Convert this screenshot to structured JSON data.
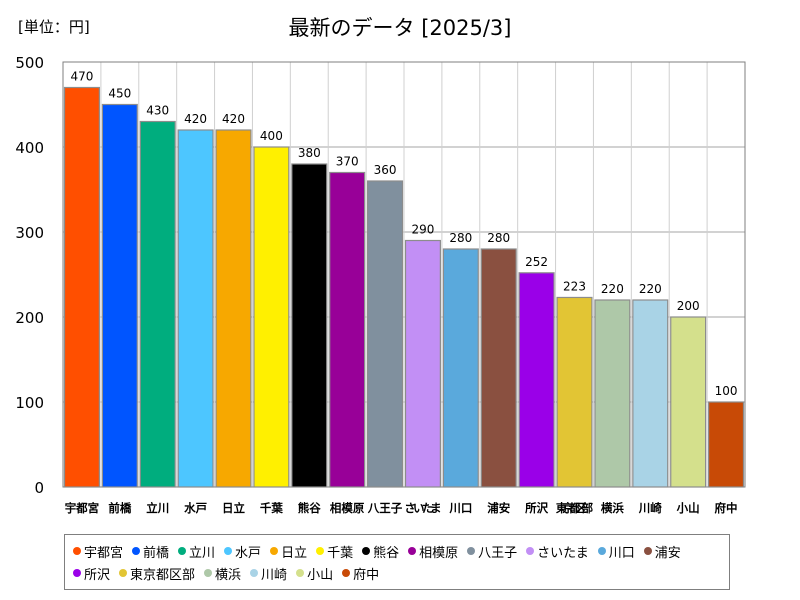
{
  "unit_label": "[単位：円]",
  "chart_data": {
    "type": "bar",
    "title": "最新のデータ [2025/3]",
    "xlabel": "",
    "ylabel": "",
    "ylim": [
      0,
      500
    ],
    "yticks": [
      0,
      100,
      200,
      300,
      400,
      500
    ],
    "grid": true,
    "legend_position": "bottom",
    "categories": [
      "宇都宮",
      "前橋",
      "立川",
      "水戸",
      "日立",
      "千葉",
      "熊谷",
      "相模原",
      "八王子",
      "さいたま",
      "川口",
      "浦安",
      "所沢",
      "東京都区部",
      "横浜",
      "川崎",
      "小山",
      "府中"
    ],
    "values": [
      470,
      450,
      430,
      420,
      420,
      400,
      380,
      370,
      360,
      290,
      280,
      280,
      252,
      223,
      220,
      220,
      200,
      100
    ],
    "colors": [
      "#ff4f00",
      "#0055ff",
      "#00ad7e",
      "#4dc6ff",
      "#f7a800",
      "#fff000",
      "#000000",
      "#980098",
      "#80909e",
      "#c28ff5",
      "#5aa9dc",
      "#8a5040",
      "#9a00e8",
      "#e2c534",
      "#aec8a8",
      "#a9d3e6",
      "#d4e08c",
      "#c84a06"
    ]
  }
}
